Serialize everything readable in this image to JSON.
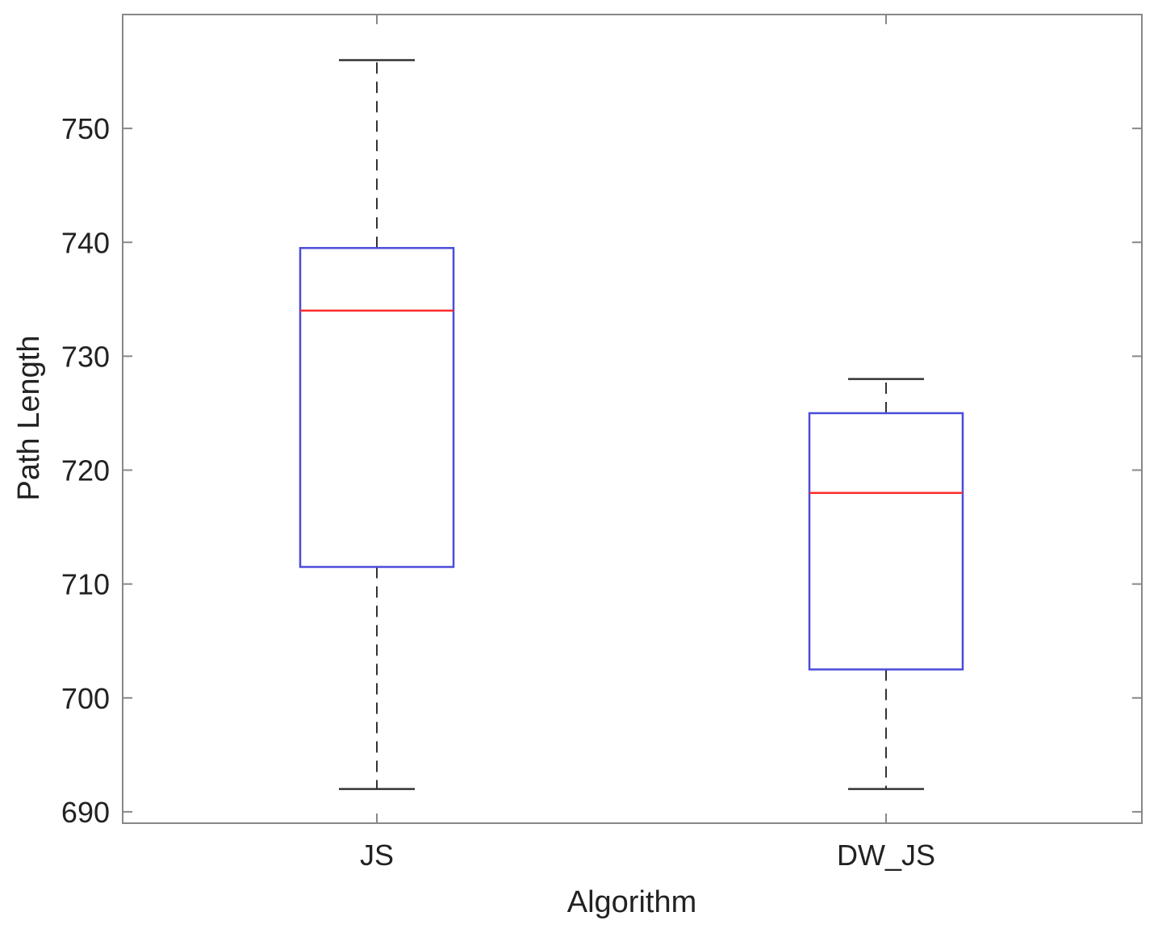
{
  "chart_data": {
    "type": "box",
    "title": "",
    "xlabel": "Algorithm",
    "ylabel": "Path Length",
    "ylim": [
      689,
      760
    ],
    "yticks": [
      690,
      700,
      710,
      720,
      730,
      740,
      750
    ],
    "ytick_labels": [
      "690",
      "700",
      "710",
      "720",
      "730",
      "740",
      "750"
    ],
    "grid": false,
    "legend": "none",
    "categories": [
      "JS",
      "DW_JS"
    ],
    "boxes": [
      {
        "label": "JS",
        "whisker_low": 692,
        "q1": 711.5,
        "median": 734,
        "q3": 739.5,
        "whisker_high": 756
      },
      {
        "label": "DW_JS",
        "whisker_low": 692,
        "q1": 702.5,
        "median": 718,
        "q3": 725,
        "whisker_high": 728
      }
    ],
    "colors": {
      "box": "#4b4bdc",
      "median": "#ff2b2b",
      "whisker": "#333333",
      "axis": "#888888"
    }
  }
}
